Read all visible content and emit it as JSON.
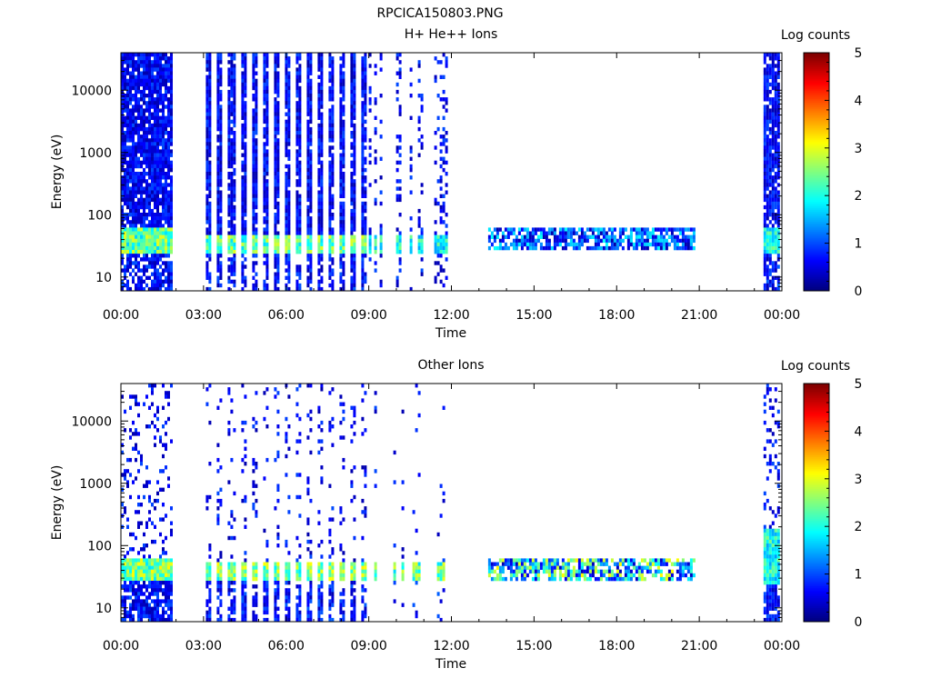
{
  "figure_title": "RPCICA150803.PNG",
  "chart_data": [
    {
      "type": "heatmap",
      "title": "H+ He++ Ions",
      "xlabel": "Time",
      "ylabel": "Energy (eV)",
      "x_tick_labels": [
        "00:00",
        "03:00",
        "06:00",
        "09:00",
        "12:00",
        "15:00",
        "18:00",
        "21:00",
        "00:00"
      ],
      "y_scale": "log",
      "y_tick_labels": [
        "10",
        "100",
        "1000",
        "10000"
      ],
      "ylim": [
        6,
        40000
      ],
      "xlim_hours": [
        0,
        24
      ],
      "colorbar": {
        "label": "Log counts",
        "tick_labels": [
          "0",
          "1",
          "2",
          "3",
          "4",
          "5"
        ],
        "range": [
          0,
          5
        ],
        "colormap": "jet"
      },
      "data_intervals": [
        {
          "start": "00:00",
          "end": "01:50",
          "pattern": "dense",
          "peak_energy_ev": [
            25,
            60
          ],
          "peak_log_counts": 3.0
        },
        {
          "start": "03:05",
          "end": "09:00",
          "pattern": "stripes",
          "peak_energy_ev": [
            25,
            50
          ],
          "peak_log_counts": 3.0
        },
        {
          "start": "09:00",
          "end": "11:50",
          "pattern": "sparse",
          "peak_energy_ev": [
            25,
            50
          ],
          "peak_log_counts": 2.5
        },
        {
          "start": "13:20",
          "end": "20:50",
          "pattern": "band",
          "band_energy_ev": [
            28,
            65
          ],
          "peak_log_counts": 1.7
        },
        {
          "start": "23:20",
          "end": "23:55",
          "pattern": "dense",
          "peak_energy_ev": [
            25,
            60
          ],
          "peak_log_counts": 2.5
        }
      ]
    },
    {
      "type": "heatmap",
      "title": "Other Ions",
      "xlabel": "Time",
      "ylabel": "Energy (eV)",
      "x_tick_labels": [
        "00:00",
        "03:00",
        "06:00",
        "09:00",
        "12:00",
        "15:00",
        "18:00",
        "21:00",
        "00:00"
      ],
      "y_scale": "log",
      "y_tick_labels": [
        "10",
        "100",
        "1000",
        "10000"
      ],
      "ylim": [
        6,
        40000
      ],
      "xlim_hours": [
        0,
        24
      ],
      "colorbar": {
        "label": "Log counts",
        "tick_labels": [
          "0",
          "1",
          "2",
          "3",
          "4",
          "5"
        ],
        "range": [
          0,
          5
        ],
        "colormap": "jet"
      },
      "data_intervals": [
        {
          "start": "00:00",
          "end": "01:50",
          "pattern": "dense",
          "peak_energy_ev": [
            28,
            60
          ],
          "peak_log_counts": 3.2
        },
        {
          "start": "03:05",
          "end": "09:00",
          "pattern": "stripes",
          "peak_energy_ev": [
            28,
            55
          ],
          "peak_log_counts": 3.2
        },
        {
          "start": "09:00",
          "end": "11:50",
          "pattern": "sparse",
          "peak_energy_ev": [
            28,
            55
          ],
          "peak_log_counts": 3.0
        },
        {
          "start": "13:20",
          "end": "20:50",
          "pattern": "band",
          "band_energy_ev": [
            28,
            65
          ],
          "peak_log_counts": 3.0
        },
        {
          "start": "23:20",
          "end": "23:55",
          "pattern": "dense",
          "peak_energy_ev": [
            25,
            200
          ],
          "peak_log_counts": 2.5
        }
      ]
    }
  ]
}
